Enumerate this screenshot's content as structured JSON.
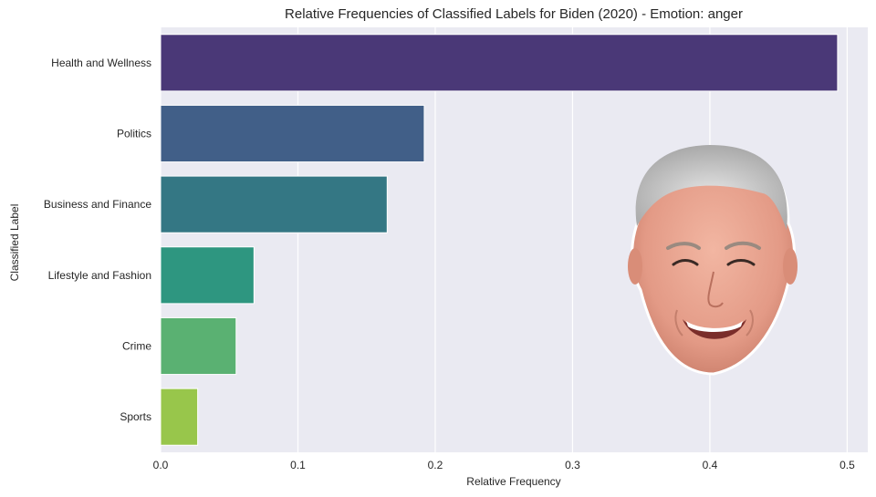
{
  "chart_data": {
    "type": "bar",
    "orientation": "horizontal",
    "title": "Relative Frequencies of Classified Labels for Biden (2020) - Emotion: anger",
    "xlabel": "Relative Frequency",
    "ylabel": "Classified Label",
    "categories": [
      "Health and Wellness",
      "Politics",
      "Business and Finance",
      "Lifestyle and Fashion",
      "Crime",
      "Sports"
    ],
    "values": [
      0.493,
      0.192,
      0.165,
      0.068,
      0.055,
      0.027
    ],
    "colors": [
      "#4a3877",
      "#415f88",
      "#347784",
      "#2e9680",
      "#5ab172",
      "#98c64b"
    ],
    "xlim": [
      0,
      0.515
    ],
    "xticks": [
      "0.0",
      "0.1",
      "0.2",
      "0.3",
      "0.4",
      "0.5"
    ],
    "grid": true,
    "background": "#eaeaf2",
    "inset_image": "smiling-face-photo"
  }
}
